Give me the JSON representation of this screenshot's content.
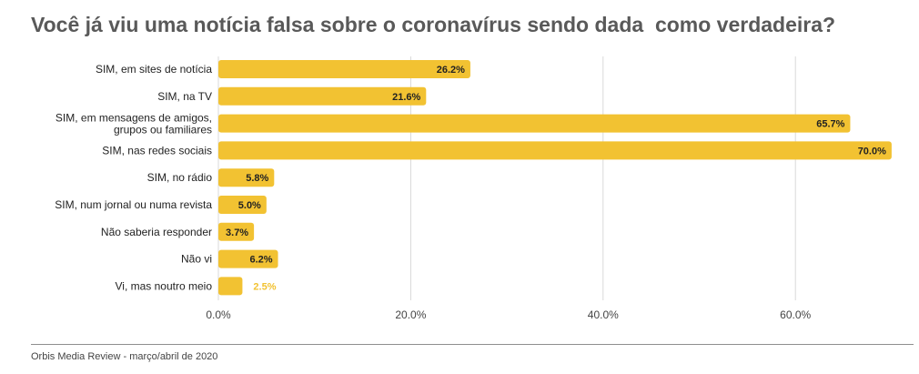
{
  "chart_data": {
    "type": "bar",
    "orientation": "horizontal",
    "title": "Você já viu uma notícia falsa sobre o coronavírus sendo dada  como verdadeira?",
    "categories": [
      [
        "SIM, em sites de notícia"
      ],
      [
        "SIM, na TV"
      ],
      [
        "SIM, em mensagens de amigos,",
        "grupos ou familiares"
      ],
      [
        "SIM, nas redes sociais"
      ],
      [
        "SIM, no rádio"
      ],
      [
        "SIM, num jornal ou numa revista"
      ],
      [
        "Não saberia responder"
      ],
      [
        "Não vi"
      ],
      [
        "Vi, mas noutro meio"
      ]
    ],
    "values": [
      26.2,
      21.6,
      65.7,
      70.0,
      5.8,
      5.0,
      3.7,
      6.2,
      2.5
    ],
    "data_labels": [
      "26.2%",
      "21.6%",
      "65.7%",
      "70.0%",
      "5.8%",
      "5.0%",
      "3.7%",
      "6.2%",
      "2.5%"
    ],
    "xlim": [
      0,
      70
    ],
    "x_ticks": [
      0,
      20,
      40,
      60
    ],
    "x_tick_labels": [
      "0.0%",
      "20.0%",
      "40.0%",
      "60.0%"
    ],
    "xlabel": "",
    "ylabel": "",
    "grid": true,
    "legend": "none",
    "colors": {
      "bar": "#f2c232",
      "grid": "#d9d9d9",
      "outside_label": "#f2c232"
    }
  },
  "footer": {
    "source": "Orbis Media Review - março/abril de 2020"
  }
}
